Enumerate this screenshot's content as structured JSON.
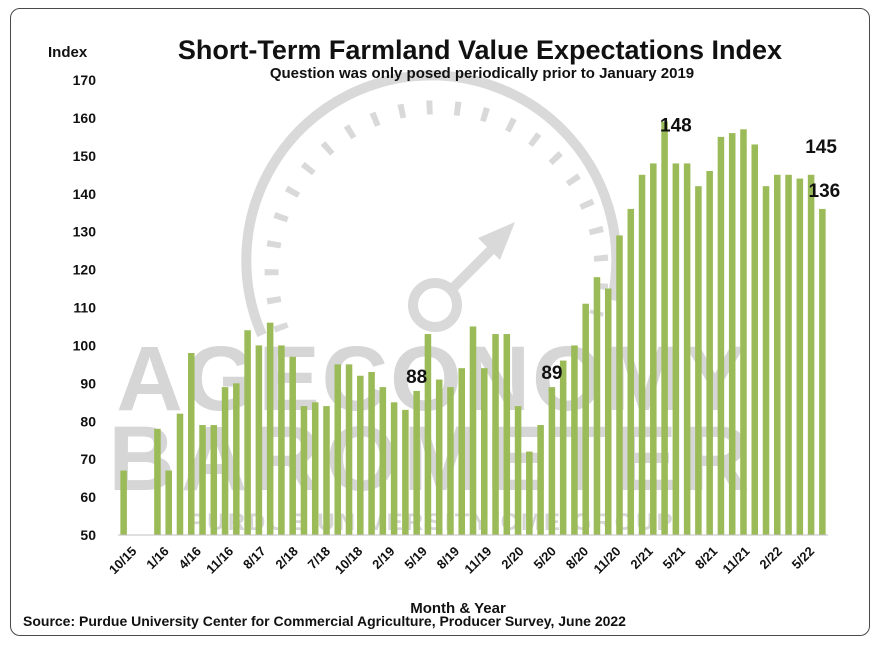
{
  "chart_data": {
    "type": "bar",
    "title": "Short-Term Farmland Value Expectations Index",
    "subtitle": "Question was only posed periodically prior to January 2019",
    "ylabel": "Index",
    "xlabel": "Month & Year",
    "ylim": [
      50,
      170
    ],
    "yticks": [
      50,
      60,
      70,
      80,
      90,
      100,
      110,
      120,
      130,
      140,
      150,
      160,
      170
    ],
    "tick_labels": [
      "10/15",
      "1/16",
      "4/16",
      "11/16",
      "8/17",
      "2/18",
      "7/18",
      "10/18",
      "2/19",
      "5/19",
      "8/19",
      "11/19",
      "2/20",
      "5/20",
      "8/20",
      "11/20",
      "2/21",
      "5/21",
      "8/21",
      "11/21",
      "2/22",
      "5/22"
    ],
    "series": [
      {
        "values": [
          67,
          null,
          null,
          78,
          67,
          82,
          98,
          79,
          79,
          89,
          90,
          104,
          100,
          106,
          100,
          97,
          84,
          85,
          84,
          95,
          95,
          92,
          93,
          89,
          85,
          83,
          88,
          103,
          91,
          89,
          94,
          105,
          94,
          103,
          103,
          84,
          72,
          79,
          89,
          96,
          100,
          111,
          118,
          115,
          129,
          136,
          145,
          148,
          159,
          148,
          148,
          142,
          146,
          155,
          156,
          157,
          153,
          142,
          145,
          145,
          144,
          145,
          136
        ]
      }
    ],
    "annotations": [
      {
        "text": "88",
        "index": 26
      },
      {
        "text": "89",
        "index": 38
      },
      {
        "text": "148",
        "index": 49
      },
      {
        "text": "145",
        "index": 61
      },
      {
        "text": "136",
        "index": 62
      }
    ],
    "watermark": {
      "line1": "AGECONOMY",
      "line2": "BAROMETER",
      "line3": "PURDUE UNIVERSITY CME GROUP"
    },
    "grid": false,
    "legend": "none",
    "bar_color": "#9bbb59"
  },
  "source": "Source: Purdue University Center for Commercial Agriculture, Producer Survey, June 2022"
}
